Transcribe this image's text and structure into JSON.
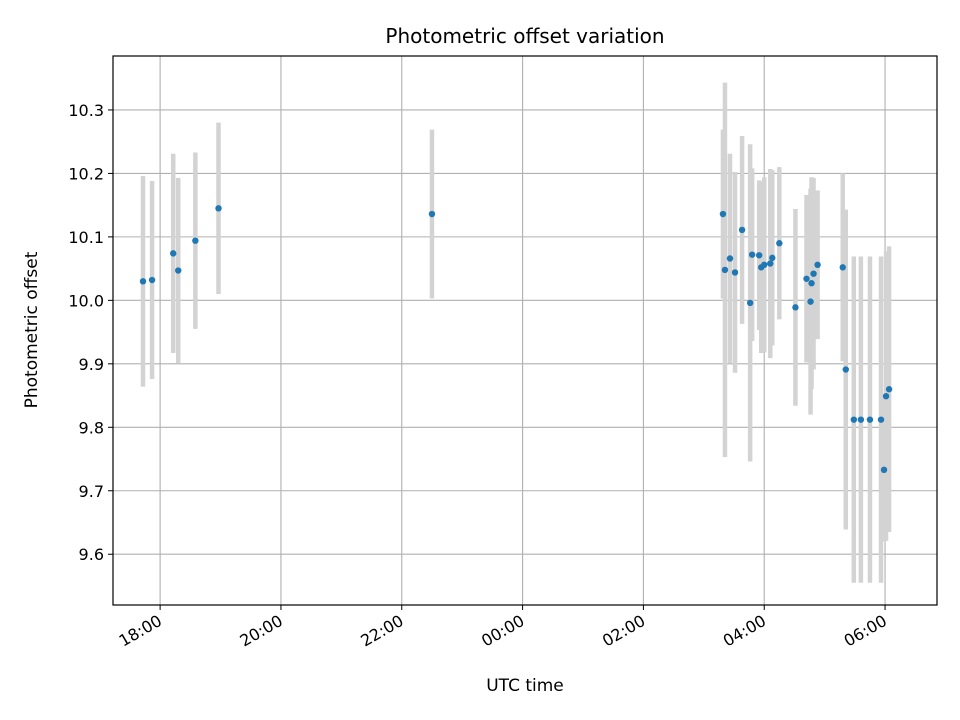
{
  "chart_data": {
    "type": "scatter",
    "title": "Photometric offset variation",
    "xlabel": "UTC time",
    "ylabel": "Photometric offset",
    "x_axis_type": "time",
    "x_start": "17:00",
    "xlim_hours": [
      0.22,
      13.86
    ],
    "ylim": [
      9.52,
      10.385
    ],
    "x_ticks": [
      {
        "label": "18:00",
        "hour": 1
      },
      {
        "label": "20:00",
        "hour": 3
      },
      {
        "label": "22:00",
        "hour": 5
      },
      {
        "label": "00:00",
        "hour": 7
      },
      {
        "label": "02:00",
        "hour": 9
      },
      {
        "label": "04:00",
        "hour": 11
      },
      {
        "label": "06:00",
        "hour": 13
      }
    ],
    "y_ticks": [
      {
        "label": "9.6",
        "value": 9.6
      },
      {
        "label": "9.7",
        "value": 9.7
      },
      {
        "label": "9.8",
        "value": 9.8
      },
      {
        "label": "9.9",
        "value": 9.9
      },
      {
        "label": "10.0",
        "value": 10.0
      },
      {
        "label": "10.1",
        "value": 10.1
      },
      {
        "label": "10.2",
        "value": 10.2
      },
      {
        "label": "10.3",
        "value": 10.3
      }
    ],
    "grid": true,
    "point_color": "#1f77b4",
    "errorbar_color": "#d3d3d3",
    "series": [
      {
        "points": [
          {
            "time": "17:43",
            "y": 10.03,
            "err": 0.166
          },
          {
            "time": "17:52",
            "y": 10.032,
            "err": 0.156
          },
          {
            "time": "18:13",
            "y": 10.074,
            "err": 0.157
          },
          {
            "time": "18:18",
            "y": 10.047,
            "err": 0.146
          },
          {
            "time": "18:35",
            "y": 10.094,
            "err": 0.139
          },
          {
            "time": "18:58",
            "y": 10.145,
            "err": 0.135
          },
          {
            "time": "22:30",
            "y": 10.136,
            "err": 0.133
          },
          {
            "time": "03:19",
            "y": 10.136,
            "err": 0.133
          },
          {
            "time": "03:21",
            "y": 10.048,
            "err": 0.295
          },
          {
            "time": "03:26",
            "y": 10.066,
            "err": 0.165
          },
          {
            "time": "03:31",
            "y": 10.044,
            "err": 0.158
          },
          {
            "time": "03:38",
            "y": 10.111,
            "err": 0.148
          },
          {
            "time": "03:46",
            "y": 9.996,
            "err": 0.25
          },
          {
            "time": "03:48",
            "y": 10.072,
            "err": 0.136
          },
          {
            "time": "03:55",
            "y": 10.071,
            "err": 0.118
          },
          {
            "time": "03:57",
            "y": 10.052,
            "err": 0.135
          },
          {
            "time": "04:00",
            "y": 10.056,
            "err": 0.138
          },
          {
            "time": "04:06",
            "y": 10.058,
            "err": 0.149
          },
          {
            "time": "04:08",
            "y": 10.067,
            "err": 0.138
          },
          {
            "time": "04:15",
            "y": 10.09,
            "err": 0.12
          },
          {
            "time": "04:31",
            "y": 9.989,
            "err": 0.155
          },
          {
            "time": "04:42",
            "y": 10.034,
            "err": 0.132
          },
          {
            "time": "04:46",
            "y": 9.998,
            "err": 0.178
          },
          {
            "time": "04:47",
            "y": 10.027,
            "err": 0.167
          },
          {
            "time": "04:49",
            "y": 10.042,
            "err": 0.151
          },
          {
            "time": "04:53",
            "y": 10.056,
            "err": 0.117
          },
          {
            "time": "05:18",
            "y": 10.052,
            "err": 0.148
          },
          {
            "time": "05:21",
            "y": 9.891,
            "err": 0.252
          },
          {
            "time": "05:29",
            "y": 9.812,
            "err": 0.257
          },
          {
            "time": "05:36",
            "y": 9.812,
            "err": 0.257
          },
          {
            "time": "05:45",
            "y": 9.812,
            "err": 0.257
          },
          {
            "time": "05:56",
            "y": 9.812,
            "err": 0.257
          },
          {
            "time": "05:59",
            "y": 9.733,
            "err": 0.113
          },
          {
            "time": "06:01",
            "y": 9.849,
            "err": 0.228
          },
          {
            "time": "06:04",
            "y": 9.86,
            "err": 0.225
          }
        ]
      }
    ]
  }
}
